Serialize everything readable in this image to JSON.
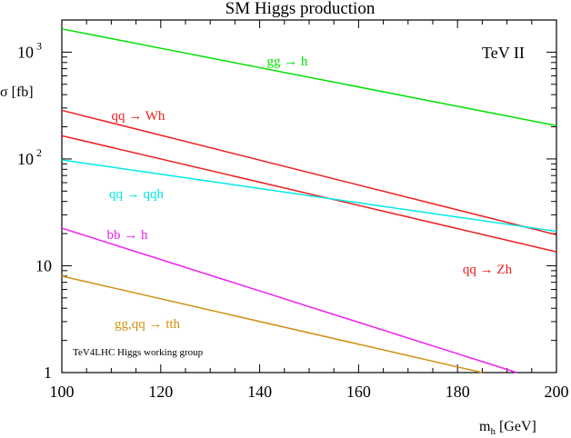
{
  "chart_data": {
    "type": "line",
    "title": "SM Higgs production",
    "xlabel": "m",
    "xlabel_sub": "h",
    "xlabel_unit": "[GeV]",
    "ylabel": "σ [fb]",
    "xlim": [
      100,
      200
    ],
    "ylim": [
      1,
      2000
    ],
    "y_scale": "log",
    "x_ticks": [
      "100",
      "120",
      "140",
      "160",
      "180",
      "200"
    ],
    "y_ticks": [
      {
        "value": 1,
        "base": "1",
        "exp": ""
      },
      {
        "value": 10,
        "base": "10",
        "exp": ""
      },
      {
        "value": 100,
        "base": "10",
        "exp": "2"
      },
      {
        "value": 1000,
        "base": "10",
        "exp": "3"
      }
    ],
    "annotations": [
      {
        "text": "TeV II"
      },
      {
        "text": "TeV4LHC Higgs working group"
      }
    ],
    "series": [
      {
        "name": "gg → h",
        "color": "#00e000",
        "x": [
          100,
          200
        ],
        "y": [
          1650,
          205
        ]
      },
      {
        "name": "qq → Wh",
        "color": "#ee2020",
        "x": [
          100,
          200
        ],
        "y": [
          285,
          19.5
        ]
      },
      {
        "name": "qq → Zh",
        "color": "#ee2020",
        "x": [
          100,
          200
        ],
        "y": [
          165,
          13.5
        ]
      },
      {
        "name": "qq → qqh",
        "color": "#00e8e8",
        "x": [
          100,
          200
        ],
        "y": [
          98,
          21
        ]
      },
      {
        "name": "bb → h",
        "color": "#ee22ee",
        "x": [
          100,
          192
        ],
        "y": [
          22.5,
          1
        ]
      },
      {
        "name": "gg,qq → tth",
        "color": "#d09010",
        "x": [
          100,
          185
        ],
        "y": [
          8,
          1
        ]
      }
    ]
  }
}
